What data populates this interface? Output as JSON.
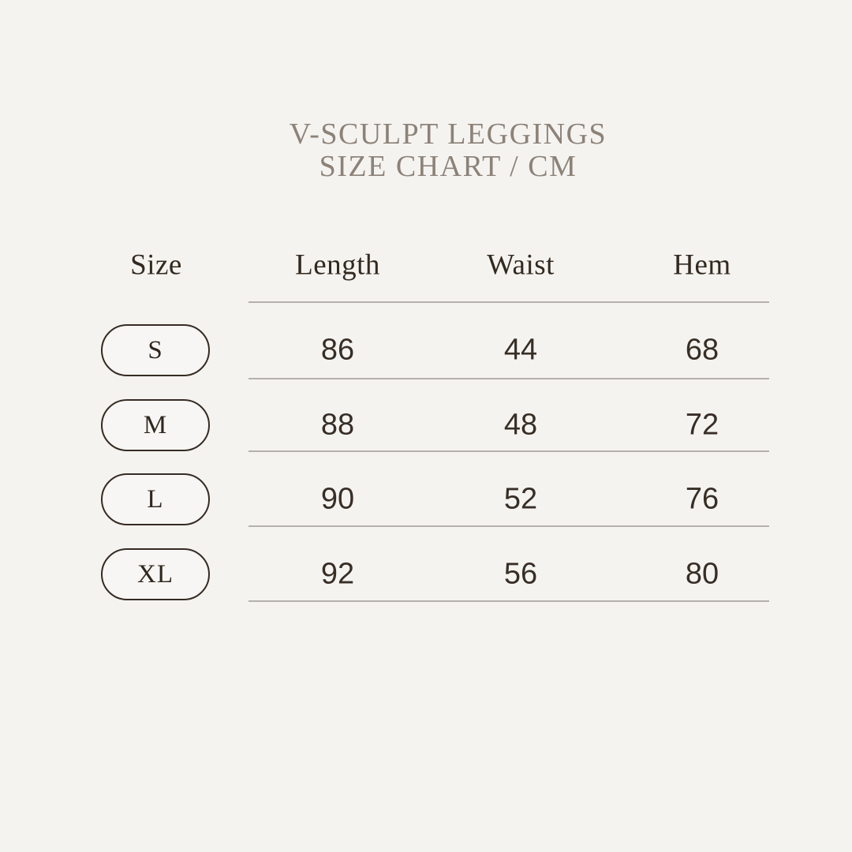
{
  "page": {
    "background_color": "#f5f3f0",
    "accent_text_color": "#8c8278",
    "table_text_color": "#32291f",
    "divider_color": "#b4b1ad"
  },
  "title": {
    "line1": "V-SCULPT LEGGINGS",
    "line2": "SIZE CHART / CM"
  },
  "table": {
    "headers": [
      "Size",
      "Length",
      "Waist",
      "Hem"
    ],
    "rows": [
      {
        "size": "S",
        "length": "86",
        "waist": "44",
        "hem": "68"
      },
      {
        "size": "M",
        "length": "88",
        "waist": "48",
        "hem": "72"
      },
      {
        "size": "L",
        "length": "90",
        "waist": "52",
        "hem": "76"
      },
      {
        "size": "XL",
        "length": "92",
        "waist": "56",
        "hem": "80"
      }
    ]
  },
  "chart_data": {
    "type": "table",
    "title": "V-SCULPT LEGGINGS SIZE CHART / CM",
    "columns": [
      "Size",
      "Length",
      "Waist",
      "Hem"
    ],
    "units": "cm",
    "rows": [
      [
        "S",
        86,
        44,
        68
      ],
      [
        "M",
        88,
        48,
        72
      ],
      [
        "L",
        90,
        52,
        76
      ],
      [
        "XL",
        92,
        56,
        80
      ]
    ]
  }
}
